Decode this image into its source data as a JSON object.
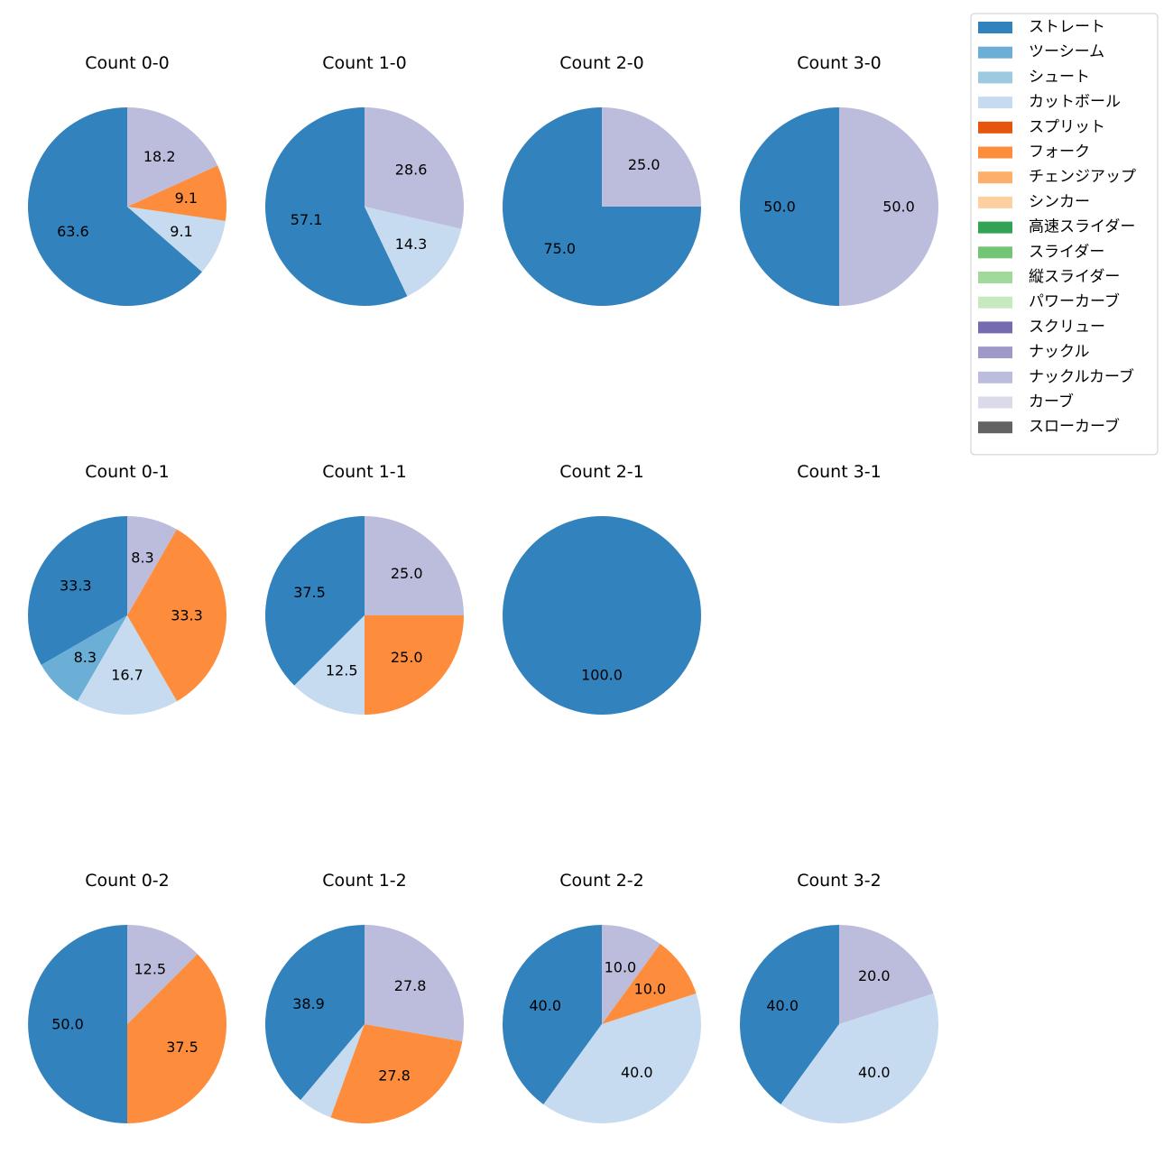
{
  "chart_data": {
    "type": "pie",
    "legend": {
      "placement": "top-right",
      "entries": [
        {
          "name": "ストレート",
          "color": "#3182bd"
        },
        {
          "name": "ツーシーム",
          "color": "#6baed6"
        },
        {
          "name": "シュート",
          "color": "#9ecae1"
        },
        {
          "name": "カットボール",
          "color": "#c6dbef"
        },
        {
          "name": "スプリット",
          "color": "#e6550d"
        },
        {
          "name": "フォーク",
          "color": "#fd8d3c"
        },
        {
          "name": "チェンジアップ",
          "color": "#fdae6b"
        },
        {
          "name": "シンカー",
          "color": "#fdd0a2"
        },
        {
          "name": "高速スライダー",
          "color": "#31a354"
        },
        {
          "name": "スライダー",
          "color": "#74c476"
        },
        {
          "name": "縦スライダー",
          "color": "#a1d99b"
        },
        {
          "name": "パワーカーブ",
          "color": "#c7e9c0"
        },
        {
          "name": "スクリュー",
          "color": "#756bb1"
        },
        {
          "name": "ナックル",
          "color": "#9e9ac8"
        },
        {
          "name": "ナックルカーブ",
          "color": "#bcbddc"
        },
        {
          "name": "カーブ",
          "color": "#dadaeb"
        },
        {
          "name": "スローカーブ",
          "color": "#636363"
        }
      ]
    },
    "charts": [
      {
        "title": "Count 0-0",
        "slices": [
          {
            "name": "ストレート",
            "value": 63.6
          },
          {
            "name": "カットボール",
            "value": 9.1
          },
          {
            "name": "フォーク",
            "value": 9.1
          },
          {
            "name": "ナックルカーブ",
            "value": 18.2
          }
        ]
      },
      {
        "title": "Count 1-0",
        "slices": [
          {
            "name": "ストレート",
            "value": 57.1
          },
          {
            "name": "カットボール",
            "value": 14.3
          },
          {
            "name": "ナックルカーブ",
            "value": 28.6
          }
        ]
      },
      {
        "title": "Count 2-0",
        "slices": [
          {
            "name": "ストレート",
            "value": 75.0
          },
          {
            "name": "ナックルカーブ",
            "value": 25.0
          }
        ]
      },
      {
        "title": "Count 3-0",
        "slices": [
          {
            "name": "ストレート",
            "value": 50.0
          },
          {
            "name": "ナックルカーブ",
            "value": 50.0
          }
        ]
      },
      {
        "title": "Count 0-1",
        "slices": [
          {
            "name": "ストレート",
            "value": 33.3
          },
          {
            "name": "ツーシーム",
            "value": 8.3
          },
          {
            "name": "カットボール",
            "value": 16.7
          },
          {
            "name": "フォーク",
            "value": 33.3
          },
          {
            "name": "ナックルカーブ",
            "value": 8.3
          }
        ]
      },
      {
        "title": "Count 1-1",
        "slices": [
          {
            "name": "ストレート",
            "value": 37.5
          },
          {
            "name": "カットボール",
            "value": 12.5
          },
          {
            "name": "フォーク",
            "value": 25.0
          },
          {
            "name": "ナックルカーブ",
            "value": 25.0
          }
        ]
      },
      {
        "title": "Count 2-1",
        "slices": [
          {
            "name": "ストレート",
            "value": 100.0
          }
        ]
      },
      {
        "title": "Count 3-1",
        "slices": []
      },
      {
        "title": "Count 0-2",
        "slices": [
          {
            "name": "ストレート",
            "value": 50.0
          },
          {
            "name": "フォーク",
            "value": 37.5
          },
          {
            "name": "ナックルカーブ",
            "value": 12.5
          }
        ]
      },
      {
        "title": "Count 1-2",
        "slices": [
          {
            "name": "ストレート",
            "value": 38.9
          },
          {
            "name": "カットボール",
            "value": 5.6,
            "label": ""
          },
          {
            "name": "フォーク",
            "value": 27.8
          },
          {
            "name": "ナックルカーブ",
            "value": 27.8
          }
        ]
      },
      {
        "title": "Count 2-2",
        "slices": [
          {
            "name": "ストレート",
            "value": 40.0
          },
          {
            "name": "カットボール",
            "value": 40.0
          },
          {
            "name": "フォーク",
            "value": 10.0
          },
          {
            "name": "ナックルカーブ",
            "value": 10.0
          }
        ]
      },
      {
        "title": "Count 3-2",
        "slices": [
          {
            "name": "ストレート",
            "value": 40.0
          },
          {
            "name": "カットボール",
            "value": 40.0
          },
          {
            "name": "ナックルカーブ",
            "value": 20.0
          }
        ]
      }
    ]
  }
}
